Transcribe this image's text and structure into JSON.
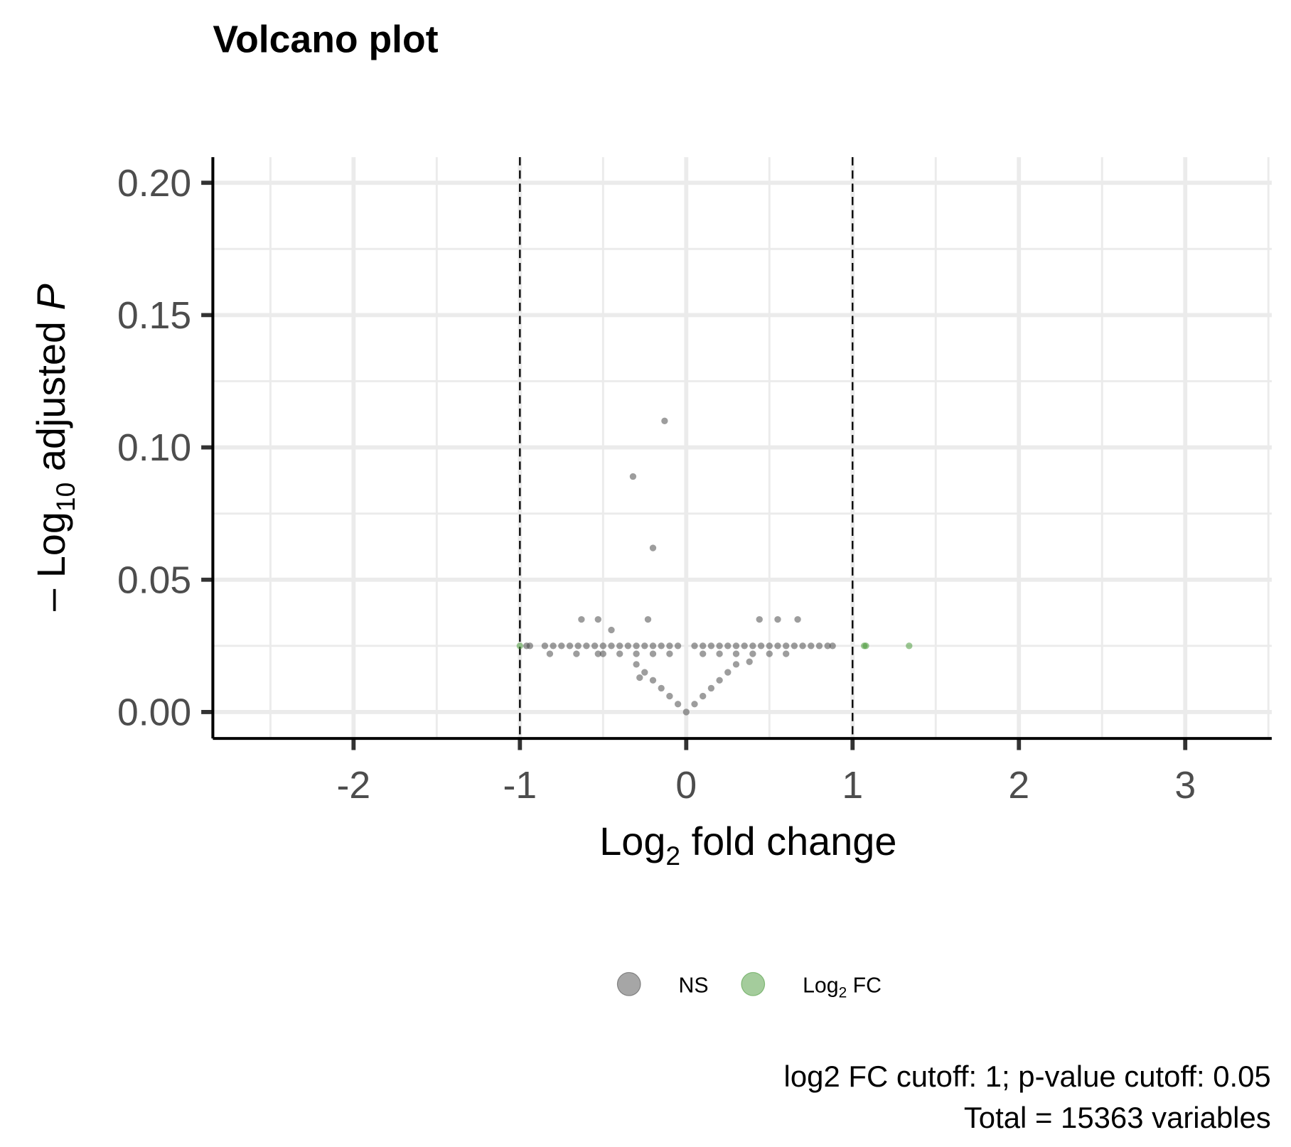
{
  "chart_data": {
    "type": "scatter",
    "title": "Volcano plot",
    "x_label": {
      "base": "Log",
      "sub": "2",
      "rest": " fold change"
    },
    "y_label": {
      "base": "– Log",
      "sub": "10",
      "rest": " adjusted ",
      "italic": "P"
    },
    "caption": [
      "log2 FC cutoff: 1; p-value cutoff: 0.05",
      "Total = 15363 variables"
    ],
    "xlim": [
      -2.846,
      3.52
    ],
    "ylim": [
      -0.01,
      0.2097
    ],
    "xticks": [
      -2,
      -1,
      0,
      1,
      2,
      3
    ],
    "yticks": [
      {
        "value": 0,
        "label": "0.00"
      },
      0.05,
      {
        "value": 0.1,
        "label": "0.10"
      },
      0.15,
      {
        "value": 0.2,
        "label": "0.20"
      }
    ],
    "x_minor_grid": [
      -2.5,
      -1.5,
      -0.5,
      0.5,
      1.5,
      2.5,
      3.5
    ],
    "y_minor_grid": [
      0.025,
      0.075,
      0.125,
      0.175
    ],
    "cutoff_lines": [
      -1,
      1
    ],
    "grid": true,
    "legend_position": "bottom",
    "series": [
      {
        "name": "NS",
        "color": "#4d4d4d",
        "x": [
          -0.13,
          -0.32,
          -0.2,
          -0.63,
          -0.53,
          -0.23,
          -0.45,
          0.44,
          0.55,
          0.67,
          -0.96,
          -0.94,
          -0.85,
          -0.8,
          -0.75,
          -0.7,
          -0.65,
          -0.6,
          -0.55,
          -0.5,
          -0.45,
          -0.4,
          -0.35,
          -0.3,
          -0.25,
          -0.2,
          -0.15,
          -0.1,
          -0.05,
          0.05,
          0.1,
          0.15,
          0.2,
          0.25,
          0.3,
          0.35,
          0.4,
          0.45,
          0.5,
          0.55,
          0.6,
          0.65,
          0.7,
          0.75,
          0.8,
          0.85,
          0.88,
          -0.82,
          -0.66,
          -0.53,
          -0.5,
          -0.4,
          -0.3,
          -0.2,
          -0.1,
          0.1,
          0.2,
          0.3,
          0.4,
          0.5,
          0.6,
          -0.3,
          0.3,
          -0.25,
          0.25,
          -0.28,
          0.38,
          -0.2,
          0.2,
          -0.15,
          0.15,
          -0.1,
          0.1,
          -0.05,
          0.05,
          0
        ],
        "y": [
          0.11,
          0.089,
          0.062,
          0.035,
          0.035,
          0.035,
          0.031,
          0.035,
          0.035,
          0.035,
          0.025,
          0.025,
          0.025,
          0.025,
          0.025,
          0.025,
          0.025,
          0.025,
          0.025,
          0.025,
          0.025,
          0.025,
          0.025,
          0.025,
          0.025,
          0.025,
          0.025,
          0.025,
          0.025,
          0.025,
          0.025,
          0.025,
          0.025,
          0.025,
          0.025,
          0.025,
          0.025,
          0.025,
          0.025,
          0.025,
          0.025,
          0.025,
          0.025,
          0.025,
          0.025,
          0.025,
          0.025,
          0.022,
          0.022,
          0.022,
          0.022,
          0.022,
          0.022,
          0.022,
          0.022,
          0.022,
          0.022,
          0.022,
          0.022,
          0.022,
          0.022,
          0.018,
          0.018,
          0.015,
          0.015,
          0.013,
          0.019,
          0.012,
          0.012,
          0.009,
          0.009,
          0.006,
          0.006,
          0.003,
          0.003,
          0
        ]
      },
      {
        "name": {
          "base": "Log",
          "sub": "2",
          "rest": " FC"
        },
        "color": "#4a9a3a",
        "x": [
          -1.0,
          1.07,
          1.08,
          1.34
        ],
        "y": [
          0.025,
          0.025,
          0.025,
          0.025
        ]
      }
    ]
  }
}
